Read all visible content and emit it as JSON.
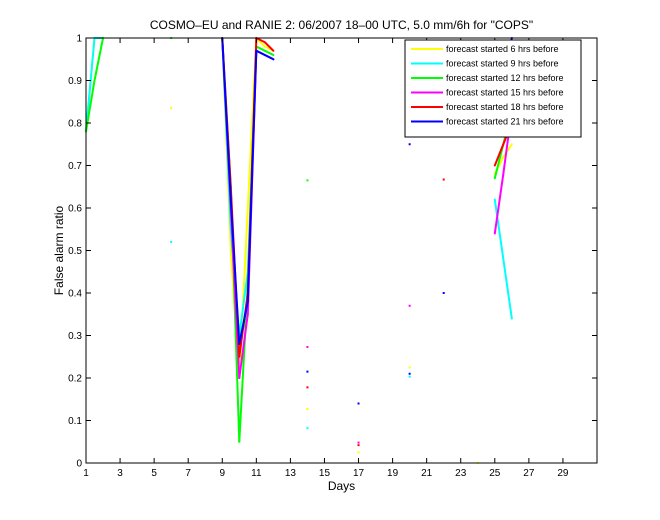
{
  "chart_data": {
    "type": "line",
    "title": "COSMO–EU and RANIE 2: 06/2007 18–00 UTC, 5.0 mm/6h for \"COPS\"",
    "xlabel": "Days",
    "ylabel": "False alarm ratio",
    "xlim": [
      1,
      31
    ],
    "ylim": [
      0,
      1
    ],
    "x_ticks": [
      1,
      3,
      5,
      7,
      9,
      11,
      13,
      15,
      17,
      19,
      21,
      23,
      25,
      27,
      29
    ],
    "y_ticks": [
      0,
      0.1,
      0.2,
      0.3,
      0.4,
      0.5,
      0.6,
      0.7,
      0.8,
      0.9,
      1
    ],
    "x_tick_labels": [
      "1",
      "3",
      "5",
      "7",
      "9",
      "11",
      "13",
      "15",
      "17",
      "19",
      "21",
      "23",
      "25",
      "27",
      "29"
    ],
    "y_tick_labels": [
      "0",
      "0.1",
      "0.2",
      "0.3",
      "0.4",
      "0.5",
      "0.6",
      "0.7",
      "0.8",
      "0.9",
      "1"
    ],
    "grid": false,
    "legend_position": "top-right",
    "series": [
      {
        "name": "forecast started 6 hrs before",
        "color": "#ffff00",
        "values": [
          [
            1,
            0.78
          ],
          [
            1.5,
            1.0
          ],
          [
            2,
            1.0
          ],
          [
            9,
            1.0
          ],
          [
            9.5,
            0.5
          ],
          [
            10,
            0.2
          ],
          [
            10.5,
            0.6
          ],
          [
            11,
            1.0
          ],
          [
            11.5,
            0.98
          ],
          [
            12,
            0.97
          ],
          [
            25,
            0.68
          ],
          [
            25.5,
            0.72
          ],
          [
            26,
            0.75
          ]
        ],
        "points": [
          [
            6,
            0.835
          ],
          [
            14,
            0.127
          ],
          [
            17,
            0.025
          ],
          [
            20,
            0.225
          ],
          [
            24,
            0.0
          ]
        ]
      },
      {
        "name": "forecast started 9 hrs before",
        "color": "#00ffff",
        "values": [
          [
            1,
            0.78
          ],
          [
            1.5,
            1.0
          ],
          [
            2,
            1.0
          ],
          [
            9,
            1.0
          ],
          [
            9.5,
            0.55
          ],
          [
            10,
            0.3
          ],
          [
            10.5,
            0.45
          ],
          [
            11,
            0.97
          ],
          [
            11.5,
            0.96
          ],
          [
            12,
            0.95
          ],
          [
            25,
            0.62
          ],
          [
            25.5,
            0.48
          ],
          [
            26,
            0.34
          ]
        ],
        "points": [
          [
            6,
            0.52
          ],
          [
            14,
            0.082
          ],
          [
            20,
            0.203
          ]
        ]
      },
      {
        "name": "forecast started 12 hrs before",
        "color": "#00ff00",
        "values": [
          [
            1,
            0.78
          ],
          [
            1.5,
            0.9
          ],
          [
            2,
            1.0
          ],
          [
            9,
            1.0
          ],
          [
            9.5,
            0.65
          ],
          [
            10,
            0.05
          ],
          [
            10.5,
            0.42
          ],
          [
            11,
            0.98
          ],
          [
            11.5,
            0.97
          ],
          [
            12,
            0.96
          ],
          [
            25,
            0.67
          ],
          [
            25.5,
            0.75
          ],
          [
            26,
            0.83
          ]
        ],
        "points": [
          [
            6,
            1.0
          ],
          [
            14,
            0.665
          ]
        ]
      },
      {
        "name": "forecast started 15 hrs before",
        "color": "#ff00ff",
        "values": [
          [
            9,
            1.0
          ],
          [
            9.5,
            0.6
          ],
          [
            10,
            0.2
          ],
          [
            10.5,
            0.35
          ],
          [
            11,
            0.97
          ],
          [
            11.5,
            0.96
          ],
          [
            12,
            0.95
          ],
          [
            25,
            0.54
          ],
          [
            25.5,
            0.68
          ],
          [
            26,
            0.83
          ]
        ],
        "points": [
          [
            14,
            0.273
          ],
          [
            17,
            0.048
          ],
          [
            20,
            0.37
          ]
        ]
      },
      {
        "name": "forecast started 18 hrs before",
        "color": "#ff0000",
        "values": [
          [
            9,
            1.0
          ],
          [
            9.5,
            0.65
          ],
          [
            10,
            0.25
          ],
          [
            10.5,
            0.4
          ],
          [
            11,
            1.0
          ],
          [
            11.5,
            0.99
          ],
          [
            12,
            0.97
          ],
          [
            25,
            0.7
          ],
          [
            25.5,
            0.75
          ],
          [
            26,
            0.8
          ]
        ],
        "points": [
          [
            14,
            0.178
          ],
          [
            17,
            0.042
          ],
          [
            22,
            0.667
          ]
        ]
      },
      {
        "name": "forecast started 21 hrs before",
        "color": "#0000ff",
        "values": [
          [
            9,
            1.0
          ],
          [
            9.5,
            0.62
          ],
          [
            10,
            0.28
          ],
          [
            10.5,
            0.38
          ],
          [
            11,
            0.97
          ],
          [
            11.5,
            0.96
          ],
          [
            12,
            0.95
          ],
          [
            25,
            0.81
          ],
          [
            25.5,
            0.9
          ],
          [
            26,
            1.0
          ]
        ],
        "points": [
          [
            14,
            0.215
          ],
          [
            17,
            0.14
          ],
          [
            20,
            0.75
          ],
          [
            20,
            0.21
          ],
          [
            22,
            0.4
          ]
        ]
      }
    ]
  }
}
